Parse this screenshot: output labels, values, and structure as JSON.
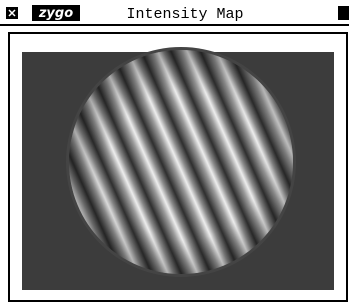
{
  "window": {
    "logo": "zygo",
    "title": "Intensity Map"
  }
}
